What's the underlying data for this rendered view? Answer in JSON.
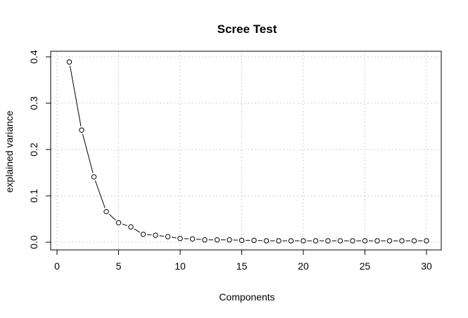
{
  "chart_data": {
    "type": "line",
    "title": "Scree Test",
    "xlabel": "Components",
    "ylabel": "explained variance",
    "xlim": [
      0,
      31
    ],
    "ylim": [
      -0.01,
      0.4
    ],
    "x_ticks": [
      0,
      5,
      10,
      15,
      20,
      25,
      30
    ],
    "y_ticks": [
      0.0,
      0.1,
      0.2,
      0.3,
      0.4
    ],
    "x_tick_labels": [
      "0",
      "5",
      "10",
      "15",
      "20",
      "25",
      "30"
    ],
    "y_tick_labels": [
      "0.0",
      "0.1",
      "0.2",
      "0.3",
      "0.4"
    ],
    "grid": true,
    "x": [
      1,
      2,
      3,
      4,
      5,
      6,
      7,
      8,
      9,
      10,
      11,
      12,
      13,
      14,
      15,
      16,
      17,
      18,
      19,
      20,
      21,
      22,
      23,
      24,
      25,
      26,
      27,
      28,
      29,
      30
    ],
    "values": [
      0.389,
      0.242,
      0.141,
      0.066,
      0.042,
      0.033,
      0.017,
      0.015,
      0.012,
      0.008,
      0.007,
      0.005,
      0.005,
      0.005,
      0.004,
      0.004,
      0.003,
      0.003,
      0.003,
      0.003,
      0.003,
      0.003,
      0.003,
      0.003,
      0.003,
      0.003,
      0.003,
      0.003,
      0.003,
      0.003
    ],
    "marker": "open-circle",
    "line_style": "b"
  }
}
